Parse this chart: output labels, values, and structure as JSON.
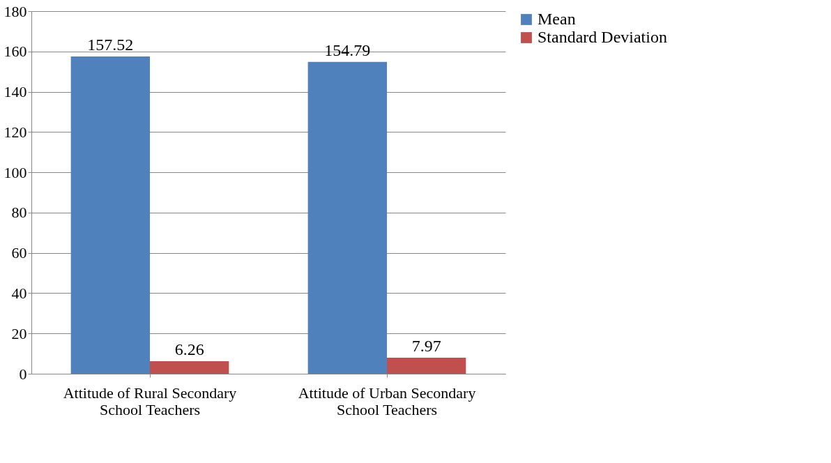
{
  "chart_data": {
    "type": "bar",
    "categories": [
      "Attitude of Rural Secondary School Teachers",
      "Attitude of Urban Secondary School Teachers"
    ],
    "series": [
      {
        "name": "Mean",
        "color": "#4f81bd",
        "values": [
          157.52,
          154.79
        ]
      },
      {
        "name": "Standard Deviation",
        "color": "#c0504d",
        "values": [
          6.26,
          7.97
        ]
      }
    ],
    "ylim": [
      0,
      180
    ],
    "yticks": [
      0,
      20,
      40,
      60,
      80,
      100,
      120,
      140,
      160,
      180
    ],
    "grid": "y",
    "legend": "right",
    "data_labels": true
  }
}
